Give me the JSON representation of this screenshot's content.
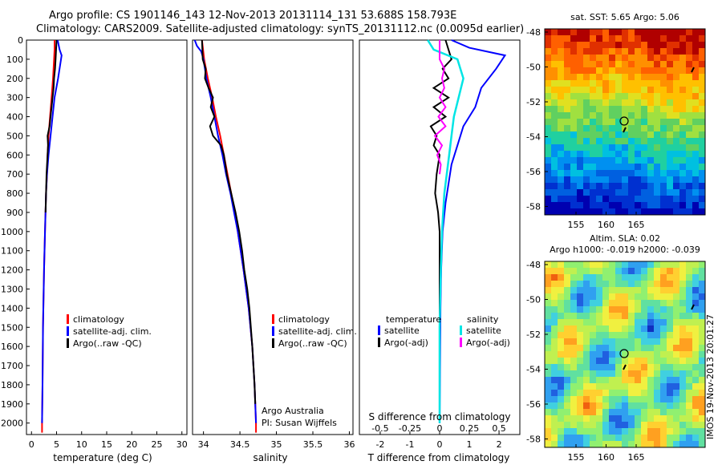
{
  "header": {
    "line1": "Argo profile: CS 1901146_143 12-Nov-2013 20131114_131 53.688S 158.793E",
    "line2": "Climatology: CARS2009. Satellite-adjusted climatology: synTS_20131112.nc (0.0095d earlier)"
  },
  "colors": {
    "climatology": "#ff0000",
    "satellite_adj": "#0000ff",
    "argo": "#000000",
    "satellite_s": "#00e5e5",
    "argo_s": "#ff00ff"
  },
  "chart_data": [
    {
      "type": "line",
      "panel": "temperature",
      "xlabel": "temperature (deg C)",
      "ylabel": "",
      "xlim": [
        -1,
        31
      ],
      "ylim": [
        2060,
        0
      ],
      "xticks": [
        0,
        5,
        10,
        15,
        20,
        25,
        30
      ],
      "yticks": [
        0,
        100,
        200,
        300,
        400,
        500,
        600,
        700,
        800,
        900,
        1000,
        1100,
        1200,
        1300,
        1400,
        1500,
        1600,
        1700,
        1800,
        1900,
        2000
      ],
      "legend": [
        "climatology",
        "satellite-adj. clim.",
        "Argo(..raw -QC)"
      ],
      "series": [
        {
          "name": "climatology",
          "depth": [
            0,
            50,
            100,
            200,
            300,
            400,
            500,
            600,
            700,
            800,
            1000,
            1200,
            1500,
            1800,
            2000,
            2050
          ],
          "values": [
            4.6,
            4.6,
            4.5,
            4.3,
            4.0,
            3.7,
            3.4,
            3.2,
            3.1,
            2.9,
            2.7,
            2.5,
            2.3,
            2.2,
            2.1,
            2.1
          ]
        },
        {
          "name": "satellite-adj. clim.",
          "depth": [
            0,
            50,
            80,
            200,
            300,
            400,
            500,
            600,
            700,
            800,
            1000,
            1200,
            1500,
            1800,
            2000
          ],
          "values": [
            5.2,
            5.6,
            6.0,
            5.3,
            4.6,
            4.2,
            3.8,
            3.4,
            3.1,
            2.9,
            2.7,
            2.5,
            2.3,
            2.2,
            2.1
          ]
        },
        {
          "name": "Argo(..raw -QC)",
          "depth": [
            0,
            50,
            100,
            150,
            200,
            250,
            300,
            350,
            400,
            450,
            500,
            550,
            600,
            700,
            800,
            900
          ],
          "values": [
            5.0,
            4.9,
            4.8,
            4.7,
            4.5,
            4.4,
            4.2,
            4.0,
            3.8,
            3.6,
            3.2,
            3.3,
            3.2,
            3.0,
            2.9,
            2.8
          ]
        }
      ]
    },
    {
      "type": "line",
      "panel": "salinity",
      "xlabel": "salinity",
      "xlim": [
        33.85,
        36.05
      ],
      "ylim": [
        2060,
        0
      ],
      "xticks": [
        "34",
        "34.5",
        "35",
        "35.5",
        "36"
      ],
      "legend": [
        "climatology",
        "satellite-adj. clim.",
        "Argo(..raw -QC)"
      ],
      "annotations": [
        "Argo Australia",
        "PI: Susan Wijffels"
      ],
      "series": [
        {
          "name": "climatology",
          "depth": [
            0,
            100,
            200,
            300,
            400,
            500,
            600,
            700,
            800,
            900,
            1000,
            1200,
            1400,
            1600,
            1800,
            2000,
            2050
          ],
          "values": [
            33.98,
            34.01,
            34.06,
            34.12,
            34.17,
            34.23,
            34.28,
            34.33,
            34.38,
            34.43,
            34.47,
            34.55,
            34.62,
            34.67,
            34.7,
            34.72,
            34.72
          ]
        },
        {
          "name": "satellite-adj. clim.",
          "depth": [
            0,
            30,
            60,
            100,
            200,
            300,
            400,
            500,
            600,
            700,
            800,
            900,
            1000,
            1200,
            1400,
            1600,
            1800,
            2000
          ],
          "values": [
            33.88,
            33.91,
            33.97,
            34.0,
            34.04,
            34.1,
            34.15,
            34.2,
            34.26,
            34.31,
            34.37,
            34.42,
            34.47,
            34.55,
            34.62,
            34.67,
            34.7,
            34.72
          ]
        },
        {
          "name": "Argo(..raw -QC)",
          "depth": [
            0,
            100,
            150,
            200,
            250,
            300,
            350,
            400,
            450,
            500,
            550,
            600,
            700,
            800,
            900,
            1000,
            1100,
            1200,
            1300,
            1400,
            1600,
            1800,
            1900
          ],
          "values": [
            33.98,
            33.99,
            34.03,
            34.02,
            34.07,
            34.13,
            34.1,
            34.15,
            34.09,
            34.13,
            34.24,
            34.28,
            34.32,
            34.38,
            34.44,
            34.49,
            34.53,
            34.56,
            34.6,
            34.63,
            34.67,
            34.7,
            34.71
          ]
        }
      ]
    },
    {
      "type": "line",
      "panel": "difference",
      "xlabel": "T difference from climatology",
      "xlabel_top": "S difference from climatology",
      "xlim": [
        -2.7,
        2.7
      ],
      "ylim": [
        2060,
        0
      ],
      "xticks_t": [
        "-2",
        "-1",
        "0",
        "1",
        "2"
      ],
      "xticks_s": [
        "-0.5",
        "-0.25",
        "0",
        "0.25",
        "0.5"
      ],
      "legend": {
        "temperature_title": "temperature",
        "salinity_title": "salinity",
        "items": [
          "satellite",
          "Argo(-adj)",
          "satellite",
          "Argo(-adj)"
        ]
      },
      "series": [
        {
          "name": "temperature satellite",
          "depth": [
            0,
            40,
            80,
            150,
            250,
            350,
            450,
            550,
            650,
            750,
            850,
            1000,
            1200,
            1400,
            1600,
            1800,
            2000
          ],
          "values": [
            0.4,
            1.0,
            2.2,
            1.9,
            1.4,
            1.2,
            0.8,
            0.6,
            0.4,
            0.3,
            0.2,
            0.1,
            0.05,
            0.03,
            0.02,
            0.01,
            0.0
          ]
        },
        {
          "name": "temperature Argo(-adj)",
          "depth": [
            0,
            50,
            100,
            150,
            200,
            250,
            300,
            350,
            400,
            450,
            500,
            550,
            600,
            700,
            800,
            900,
            1000,
            1200,
            1400,
            1600,
            1800,
            1950
          ],
          "values": [
            0.2,
            0.3,
            0.4,
            0.1,
            0.3,
            -0.2,
            0.3,
            -0.2,
            0.2,
            -0.3,
            -0.1,
            -0.2,
            0.0,
            -0.1,
            -0.15,
            -0.05,
            0.0,
            0.0,
            0.0,
            0.0,
            0.0,
            0.0
          ]
        },
        {
          "name": "salinity satellite",
          "depth": [
            0,
            50,
            100,
            200,
            300,
            400,
            500,
            600,
            700,
            800,
            900,
            1000,
            1200,
            1500,
            1800,
            2000
          ],
          "values": [
            -0.1,
            -0.05,
            0.15,
            0.2,
            0.16,
            0.12,
            0.1,
            0.08,
            0.06,
            0.04,
            0.03,
            0.02,
            0.01,
            0.0,
            0.0,
            0.0
          ]
        },
        {
          "name": "salinity Argo(-adj)",
          "depth": [
            0,
            100,
            150,
            200,
            250,
            300,
            350,
            400,
            450,
            500,
            550,
            600,
            650,
            700
          ],
          "values": [
            0.0,
            0.0,
            0.04,
            0.02,
            0.04,
            0.0,
            0.05,
            -0.01,
            0.05,
            -0.04,
            0.02,
            -0.02,
            0.01,
            0.0
          ]
        }
      ]
    }
  ],
  "maps": {
    "sst": {
      "title": "sat. SST: 5.65 Argo: 5.06",
      "yticks": [
        "-48",
        "-50",
        "-52",
        "-54",
        "-56",
        "-58"
      ],
      "xticks": [
        "155",
        "160",
        "165"
      ]
    },
    "sla": {
      "title1": "Altim. SLA: 0.02",
      "title2": "Argo h1000: -0.019 h2000: -0.039",
      "yticks": [
        "-48",
        "-50",
        "-52",
        "-54",
        "-56",
        "-58"
      ],
      "xticks": [
        "155",
        "160",
        "165"
      ]
    },
    "credit": "IMOS 19-Nov-2013 20:01:27"
  }
}
